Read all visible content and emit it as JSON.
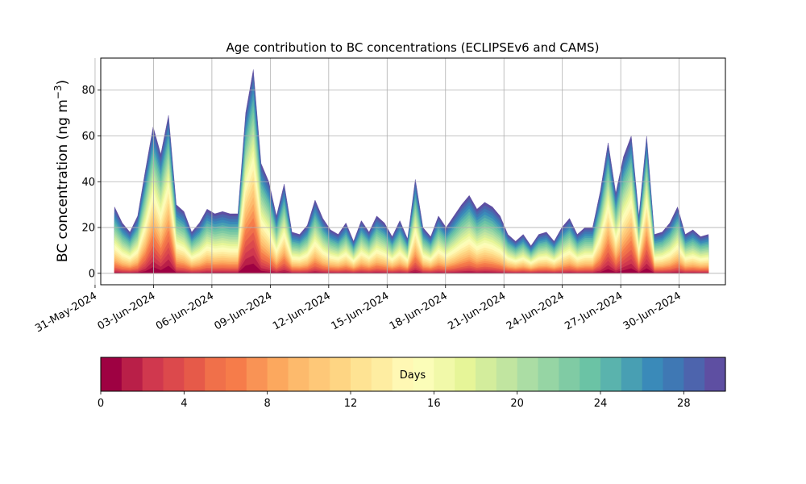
{
  "chart_data": {
    "type": "area",
    "title": "Age contribution to BC concentrations (ECLIPSEv6 and CAMS)",
    "ylabel_main": "BC concentration (ng m",
    "ylabel_exp": "−3",
    "ylabel_close": ")",
    "xlabel": "",
    "grid": true,
    "ylim": [
      -5,
      94
    ],
    "xlim": [
      "2024-05-31T07:00",
      "2024-07-02T09:00"
    ],
    "yticks": [
      0,
      20,
      40,
      60,
      80
    ],
    "ytick_labels": [
      "0",
      "20",
      "40",
      "60",
      "80"
    ],
    "xticks": [
      "2024-05-31",
      "2024-06-03",
      "2024-06-06",
      "2024-06-09",
      "2024-06-12",
      "2024-06-15",
      "2024-06-18",
      "2024-06-21",
      "2024-06-24",
      "2024-06-27",
      "2024-06-30"
    ],
    "xtick_labels": [
      "31-May-2024",
      "03-Jun-2024",
      "06-Jun-2024",
      "09-Jun-2024",
      "12-Jun-2024",
      "15-Jun-2024",
      "18-Jun-2024",
      "21-Jun-2024",
      "24-Jun-2024",
      "27-Jun-2024",
      "30-Jun-2024"
    ],
    "series_description": "Stacked contributions by BC age in days (0 to 30); approximate total concentration below",
    "x": [
      "2024-06-01T00:00",
      "2024-06-01T12:00",
      "2024-06-02T00:00",
      "2024-06-02T06:00",
      "2024-06-02T12:00",
      "2024-06-02T18:00",
      "2024-06-03T00:00",
      "2024-06-03T12:00",
      "2024-06-04T00:00",
      "2024-06-04T12:00",
      "2024-06-05T00:00",
      "2024-06-05T12:00",
      "2024-06-06T00:00",
      "2024-06-06T06:00",
      "2024-06-06T12:00",
      "2024-06-07T00:00",
      "2024-06-07T12:00",
      "2024-06-08T00:00",
      "2024-06-08T12:00",
      "2024-06-09T00:00",
      "2024-06-09T12:00",
      "2024-06-10T00:00",
      "2024-06-10T12:00",
      "2024-06-11T00:00",
      "2024-06-11T12:00",
      "2024-06-12T00:00",
      "2024-06-12T12:00",
      "2024-06-13T00:00",
      "2024-06-13T12:00",
      "2024-06-14T00:00",
      "2024-06-14T12:00",
      "2024-06-15T00:00",
      "2024-06-15T12:00",
      "2024-06-16T00:00",
      "2024-06-16T12:00",
      "2024-06-17T00:00",
      "2024-06-17T12:00",
      "2024-06-18T00:00",
      "2024-06-18T12:00",
      "2024-06-19T00:00",
      "2024-06-19T12:00",
      "2024-06-20T00:00",
      "2024-06-20T12:00",
      "2024-06-21T00:00",
      "2024-06-21T12:00",
      "2024-06-22T00:00",
      "2024-06-22T12:00",
      "2024-06-23T00:00",
      "2024-06-23T12:00",
      "2024-06-24T00:00",
      "2024-06-24T12:00",
      "2024-06-25T00:00",
      "2024-06-25T12:00",
      "2024-06-26T00:00",
      "2024-06-26T12:00",
      "2024-06-27T00:00",
      "2024-06-27T12:00",
      "2024-06-28T00:00",
      "2024-06-28T12:00",
      "2024-06-29T00:00",
      "2024-06-29T12:00",
      "2024-06-30T00:00",
      "2024-06-30T12:00",
      "2024-07-01T00:00",
      "2024-07-01T12:00"
    ],
    "total": [
      29,
      22,
      18,
      25,
      45,
      64,
      52,
      69,
      30,
      27,
      18,
      22,
      28,
      26,
      27,
      26,
      26,
      70,
      89,
      48,
      40,
      25,
      39,
      18,
      17,
      21,
      32,
      24,
      19,
      17,
      22,
      14,
      23,
      18,
      25,
      22,
      16,
      23,
      15,
      41,
      20,
      16,
      25,
      20,
      25,
      30,
      34,
      28,
      31,
      29,
      25,
      17,
      14,
      17,
      12,
      17,
      18,
      14,
      20,
      24,
      17,
      20,
      20,
      36,
      57,
      35,
      51,
      60,
      25,
      60,
      17,
      18,
      22,
      29,
      17,
      19,
      16,
      17
    ],
    "total_x_note": "total values sampled evenly from 2024-06-01T00:00 to 2024-07-01T12:00",
    "colorbar": {
      "label": "Days",
      "min": 0,
      "max": 30,
      "ticks": [
        0,
        4,
        8,
        12,
        16,
        20,
        24,
        28
      ],
      "tick_labels": [
        "0",
        "4",
        "8",
        "12",
        "16",
        "20",
        "24",
        "28"
      ],
      "colors": [
        "#9e0142",
        "#b91f48",
        "#d0384e",
        "#dc494c",
        "#e65a49",
        "#f0704a",
        "#f67c4a",
        "#f99355",
        "#fca85e",
        "#fdba6c",
        "#fec878",
        "#fed583",
        "#fee393",
        "#feeda1",
        "#fff8b4",
        "#fbfdb8",
        "#f1f9a9",
        "#e6f598",
        "#d3ed9c",
        "#c1e5a0",
        "#abdda4",
        "#96d5a4",
        "#80cba4",
        "#6bc3a5",
        "#5ab3ad",
        "#489fb3",
        "#3a8ab9",
        "#3f78b4",
        "#4d64ad",
        "#5e4fa2"
      ]
    }
  }
}
